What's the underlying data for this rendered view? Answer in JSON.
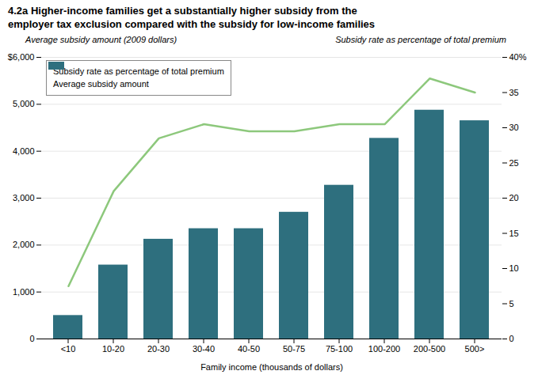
{
  "chart_data": {
    "type": "bar",
    "title": "4.2a Higher-income families get a substantially higher subsidy from the\nemployer tax exclusion compared with the subsidy for low-income families",
    "xlabel": "Family income (thousands of dollars)",
    "ylabel": "Average subsidy amount (2009 dollars)",
    "y2label": "Subsidy rate as percentage of total premium",
    "categories": [
      "<10",
      "10-20",
      "20-30",
      "30-40",
      "40-50",
      "50-75",
      "75-100",
      "100-200",
      "200-500",
      "500>"
    ],
    "series": [
      {
        "name": "Subsidy rate as percentage of total premium",
        "type": "line",
        "axis": "y2",
        "color": "#8dc87c",
        "values": [
          7.5,
          21,
          28.5,
          30.5,
          29.5,
          29.5,
          30.5,
          30.5,
          37,
          35
        ]
      },
      {
        "name": "Average subsidy amount",
        "type": "bar",
        "color": "#2e6f7e",
        "values": [
          500,
          1575,
          2125,
          2350,
          2350,
          2700,
          3275,
          4275,
          4875,
          4650
        ]
      }
    ],
    "ylim": [
      0,
      6000
    ],
    "yticks": [
      0,
      {
        "value": 1000,
        "label": "1,000"
      },
      {
        "value": 2000,
        "label": "2,000"
      },
      {
        "value": 3000,
        "label": "3,000"
      },
      {
        "value": 4000,
        "label": "4,000"
      },
      {
        "value": 5000,
        "label": "5,000"
      },
      {
        "value": 6000,
        "label": "$6,000"
      }
    ],
    "y2lim": [
      0,
      40
    ],
    "y2ticks": [
      0,
      5,
      10,
      15,
      20,
      25,
      30,
      35,
      {
        "value": 40,
        "label": "40%"
      }
    ],
    "grid": true,
    "legend": "upper left"
  }
}
